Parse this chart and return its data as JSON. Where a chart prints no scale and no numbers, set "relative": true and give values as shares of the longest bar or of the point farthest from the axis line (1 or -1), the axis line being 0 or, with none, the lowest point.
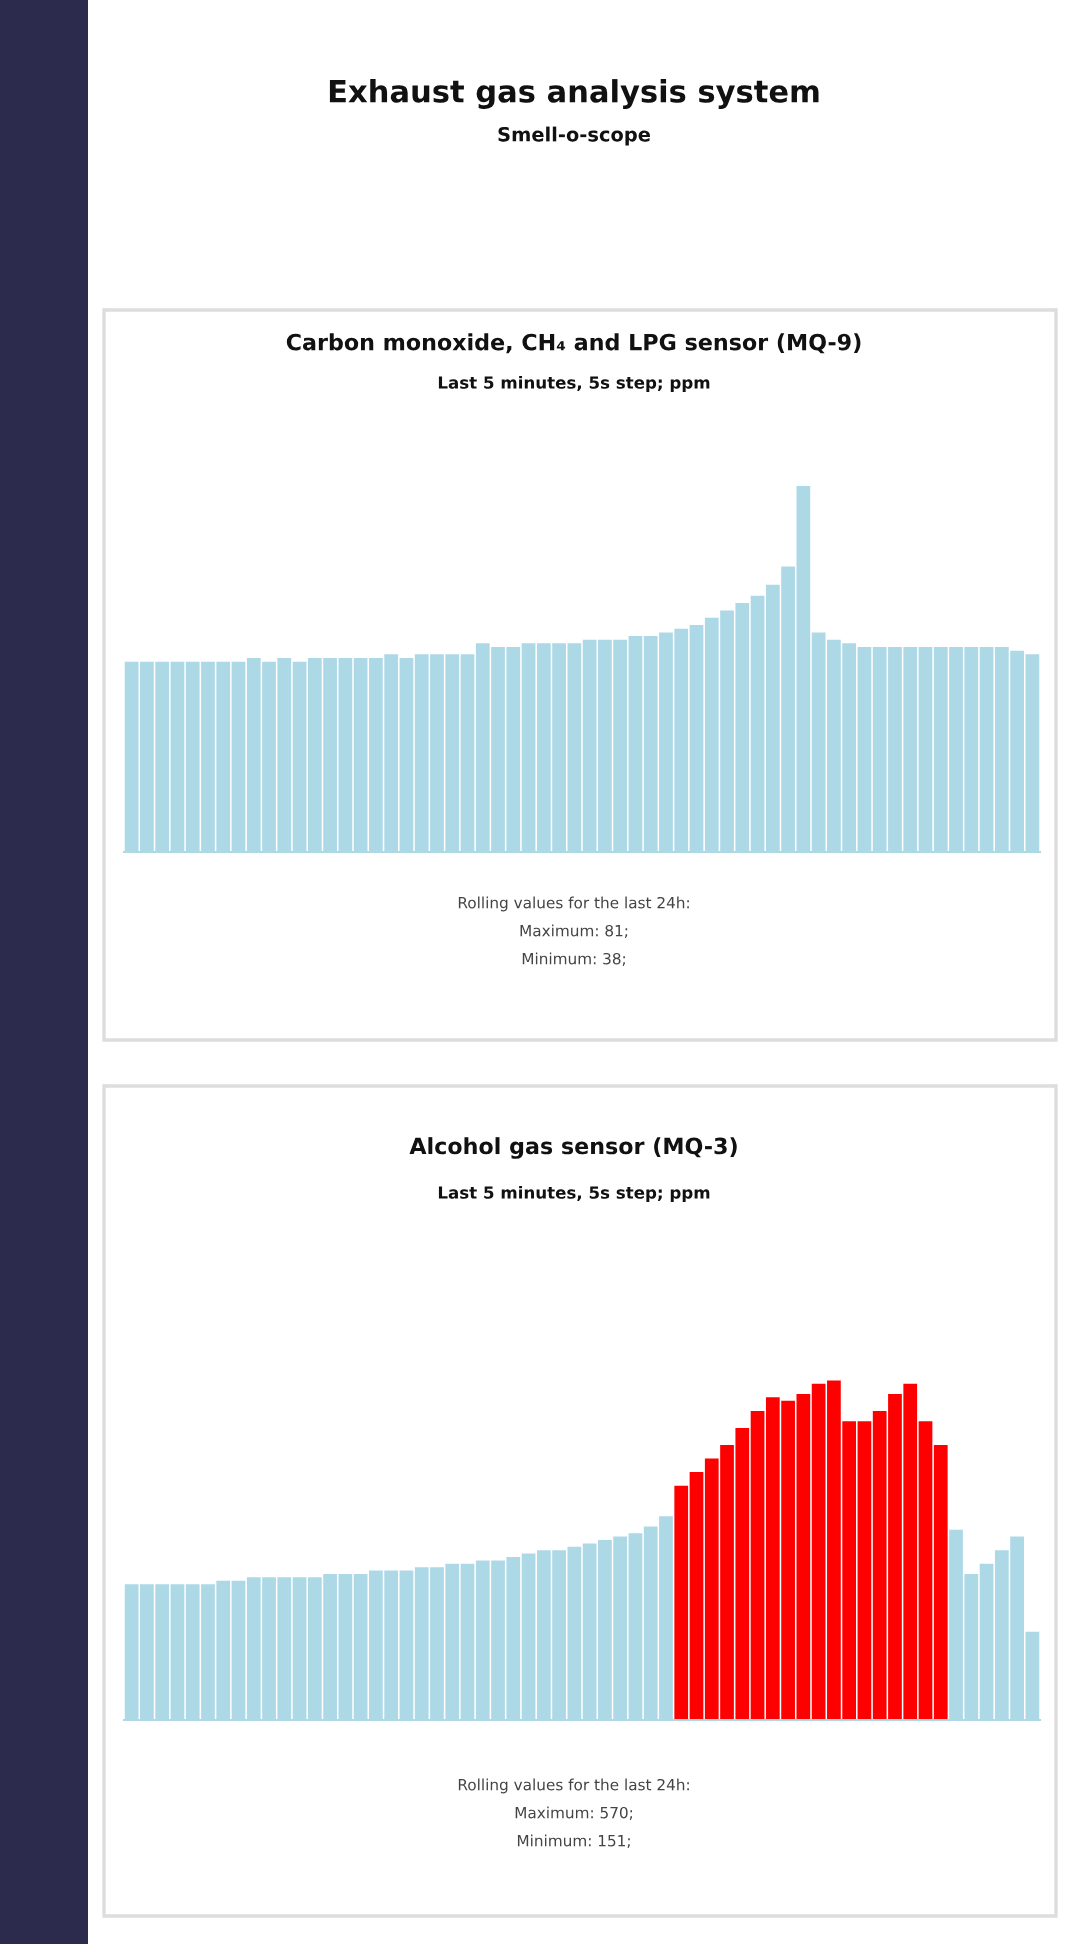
{
  "chart_data": [
    {
      "type": "other",
      "title": "Exhaust gas analysis system",
      "subtitle": "Smell-o-scope"
    },
    {
      "type": "bar",
      "title": "Carbon monoxide, CH₄ and LPG sensor (MQ-9)",
      "subtitle": "Last 5 minutes, 5s step; ppm",
      "relative": true,
      "categories": [
        null,
        null,
        null,
        null,
        null,
        null,
        null,
        null,
        null,
        null,
        null,
        null,
        null,
        null,
        null,
        null,
        null,
        null,
        null,
        null,
        null,
        null,
        null,
        null,
        null,
        null,
        null,
        null,
        null,
        null,
        null,
        null,
        null,
        null,
        null,
        null,
        null,
        null,
        null,
        null,
        null,
        null,
        null,
        null,
        null,
        null,
        null,
        null,
        null,
        null,
        null,
        null,
        null,
        null,
        null,
        null,
        null,
        null,
        null,
        null
      ],
      "values": [
        0.52,
        0.52,
        0.52,
        0.52,
        0.52,
        0.52,
        0.52,
        0.52,
        0.53,
        0.52,
        0.53,
        0.52,
        0.53,
        0.53,
        0.53,
        0.53,
        0.53,
        0.54,
        0.53,
        0.54,
        0.54,
        0.54,
        0.54,
        0.57,
        0.56,
        0.56,
        0.57,
        0.57,
        0.57,
        0.57,
        0.58,
        0.58,
        0.58,
        0.59,
        0.59,
        0.6,
        0.61,
        0.62,
        0.64,
        0.66,
        0.68,
        0.7,
        0.73,
        0.78,
        1.0,
        0.6,
        0.58,
        0.57,
        0.56,
        0.56,
        0.56,
        0.56,
        0.56,
        0.56,
        0.56,
        0.56,
        0.56,
        0.56,
        0.55,
        0.54
      ],
      "color": "#add8e6",
      "annotations": [
        "Rolling values for the last 24h:",
        "Maximum: 81;",
        "Minimum: 38;"
      ]
    },
    {
      "type": "bar",
      "title": "Alcohol gas sensor (MQ-3)",
      "subtitle": "Last 5 minutes, 5s step; ppm",
      "relative": true,
      "categories": [
        null,
        null,
        null,
        null,
        null,
        null,
        null,
        null,
        null,
        null,
        null,
        null,
        null,
        null,
        null,
        null,
        null,
        null,
        null,
        null,
        null,
        null,
        null,
        null,
        null,
        null,
        null,
        null,
        null,
        null,
        null,
        null,
        null,
        null,
        null,
        null,
        null,
        null,
        null,
        null,
        null,
        null,
        null,
        null,
        null,
        null,
        null,
        null,
        null,
        null,
        null,
        null,
        null,
        null,
        null,
        null,
        null,
        null,
        null,
        null
      ],
      "values": [
        0.4,
        0.4,
        0.4,
        0.4,
        0.4,
        0.4,
        0.41,
        0.41,
        0.42,
        0.42,
        0.42,
        0.42,
        0.42,
        0.43,
        0.43,
        0.43,
        0.44,
        0.44,
        0.44,
        0.45,
        0.45,
        0.46,
        0.46,
        0.47,
        0.47,
        0.48,
        0.49,
        0.5,
        0.5,
        0.51,
        0.52,
        0.53,
        0.54,
        0.55,
        0.57,
        0.6,
        0.69,
        0.73,
        0.77,
        0.81,
        0.86,
        0.91,
        0.95,
        0.94,
        0.96,
        0.99,
        1.0,
        0.88,
        0.88,
        0.91,
        0.96,
        0.99,
        0.88,
        0.81,
        0.56,
        0.43,
        0.46,
        0.5,
        0.54,
        0.26
      ],
      "colors": [
        "#add8e6",
        "#add8e6",
        "#add8e6",
        "#add8e6",
        "#add8e6",
        "#add8e6",
        "#add8e6",
        "#add8e6",
        "#add8e6",
        "#add8e6",
        "#add8e6",
        "#add8e6",
        "#add8e6",
        "#add8e6",
        "#add8e6",
        "#add8e6",
        "#add8e6",
        "#add8e6",
        "#add8e6",
        "#add8e6",
        "#add8e6",
        "#add8e6",
        "#add8e6",
        "#add8e6",
        "#add8e6",
        "#add8e6",
        "#add8e6",
        "#add8e6",
        "#add8e6",
        "#add8e6",
        "#add8e6",
        "#add8e6",
        "#add8e6",
        "#add8e6",
        "#add8e6",
        "#add8e6",
        "#ff0000",
        "#ff0000",
        "#ff0000",
        "#ff0000",
        "#ff0000",
        "#ff0000",
        "#ff0000",
        "#ff0000",
        "#ff0000",
        "#ff0000",
        "#ff0000",
        "#ff0000",
        "#ff0000",
        "#ff0000",
        "#ff0000",
        "#ff0000",
        "#ff0000",
        "#ff0000",
        "#add8e6",
        "#add8e6",
        "#add8e6",
        "#add8e6",
        "#add8e6",
        "#add8e6"
      ],
      "annotations": [
        "Rolling values for the last 24h:",
        "Maximum: 570;",
        "Minimum: 151;"
      ]
    }
  ]
}
